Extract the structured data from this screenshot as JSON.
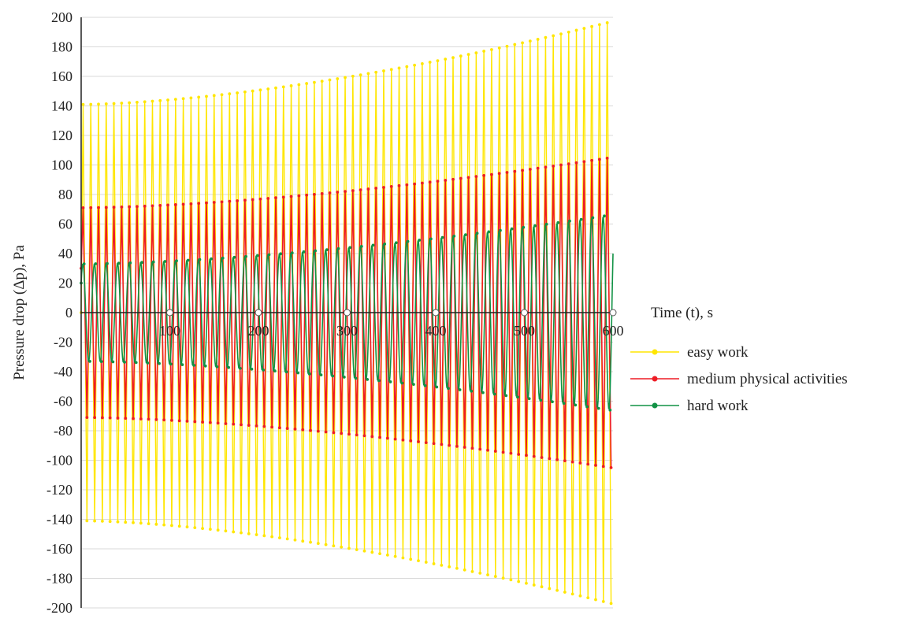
{
  "chart_data": {
    "type": "line",
    "title": "",
    "xlabel": "Time (t), s",
    "ylabel": "Pressure drop (Δp), Pa",
    "xlim": [
      0,
      600
    ],
    "ylim": [
      -200,
      200
    ],
    "x_ticks": [
      "100",
      "200",
      "300",
      "400",
      "500",
      "600"
    ],
    "y_ticks": [
      "200",
      "180",
      "160",
      "140",
      "120",
      "100",
      "80",
      "60",
      "40",
      "20",
      "0",
      "-20",
      "-40",
      "-60",
      "-80",
      "-100",
      "-120",
      "-140",
      "-160",
      "-180",
      "-200"
    ],
    "grid": "horizontal",
    "legend_position": "right",
    "series": [
      {
        "name": "easy work",
        "color": "#ffe600",
        "cycles": 69,
        "start_value": 0,
        "amplitude_start": 141,
        "amplitude_end": 197
      },
      {
        "name": "medium physical activities",
        "color": "#ee1c25",
        "cycles": 69,
        "start_value": 30,
        "amplitude_start": 71,
        "amplitude_end": 105
      },
      {
        "name": "hard work",
        "color": "#119245",
        "cycles": 46,
        "start_value": 20,
        "amplitude_start": 33,
        "amplitude_end": 66
      }
    ]
  }
}
